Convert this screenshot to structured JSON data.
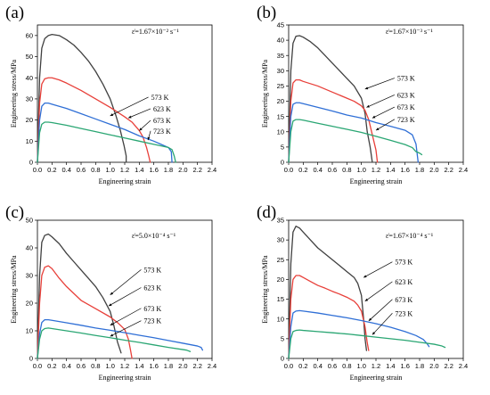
{
  "chart_data": [
    {
      "type": "line",
      "panel_label": "(a)",
      "strain_rate": "ε̇=1.67×10⁻² s⁻¹",
      "xlabel": "Engineering strain",
      "ylabel": "Engineering stress/MPa",
      "xlim": [
        0,
        2.4
      ],
      "ylim": [
        0,
        65
      ],
      "xticks": [
        "0.0",
        "0.2",
        "0.4",
        "0.6",
        "0.8",
        "1.0",
        "1.2",
        "1.4",
        "1.6",
        "1.8",
        "2.0",
        "2.2",
        "2.4"
      ],
      "yticks": [
        "0",
        "10",
        "20",
        "30",
        "40",
        "50",
        "60"
      ],
      "yticks_values": [
        0,
        10,
        20,
        30,
        40,
        50,
        60
      ],
      "series": [
        {
          "name": "573 K",
          "color": "#404040",
          "x": [
            0,
            0.03,
            0.06,
            0.1,
            0.15,
            0.2,
            0.3,
            0.4,
            0.5,
            0.6,
            0.7,
            0.8,
            0.9,
            1.0,
            1.08,
            1.14,
            1.19,
            1.22,
            1.22
          ],
          "y": [
            0,
            40,
            54,
            58.5,
            60,
            60.5,
            60,
            58,
            55.5,
            52,
            48,
            43,
            37,
            30,
            22,
            15,
            8,
            3,
            0
          ]
        },
        {
          "name": "623 K",
          "color": "#e8403a",
          "x": [
            0,
            0.03,
            0.06,
            0.1,
            0.15,
            0.2,
            0.3,
            0.4,
            0.6,
            0.8,
            1.0,
            1.2,
            1.3,
            1.4,
            1.45,
            1.5,
            1.53,
            1.55
          ],
          "y": [
            0,
            28,
            37,
            39.5,
            40,
            40,
            39,
            37.5,
            34,
            30,
            26,
            21.5,
            19,
            15,
            12,
            7,
            3,
            0
          ]
        },
        {
          "name": "673 K",
          "color": "#2f6fd6",
          "x": [
            0,
            0.03,
            0.06,
            0.1,
            0.15,
            0.2,
            0.4,
            0.6,
            0.8,
            1.0,
            1.2,
            1.4,
            1.6,
            1.7,
            1.8,
            1.84,
            1.85
          ],
          "y": [
            0,
            20,
            26.5,
            28,
            28,
            27.5,
            25.5,
            23,
            20.5,
            18,
            15.5,
            12.5,
            10,
            8.5,
            7,
            5,
            0
          ]
        },
        {
          "name": "723 K",
          "color": "#2aa673",
          "x": [
            0,
            0.03,
            0.06,
            0.1,
            0.15,
            0.2,
            0.4,
            0.6,
            0.8,
            1.0,
            1.2,
            1.4,
            1.6,
            1.8,
            1.85,
            1.88,
            1.9
          ],
          "y": [
            0,
            14,
            18,
            19,
            19,
            18.8,
            17.5,
            16,
            14.5,
            13,
            11.5,
            10,
            8.5,
            7,
            6,
            3,
            0
          ]
        }
      ],
      "annotations": [
        {
          "text": "573 K",
          "x": 1.55,
          "y": 30,
          "tx": 1.0,
          "ty": 22
        },
        {
          "text": "623 K",
          "x": 1.58,
          "y": 24.5,
          "tx": 1.25,
          "ty": 21
        },
        {
          "text": "673 K",
          "x": 1.58,
          "y": 19,
          "tx": 1.4,
          "ty": 15
        },
        {
          "text": "723 K",
          "x": 1.58,
          "y": 14,
          "tx": 1.52,
          "ty": 10.5
        }
      ]
    },
    {
      "type": "line",
      "panel_label": "(b)",
      "strain_rate": "ε̇=1.67×10⁻³ s⁻¹",
      "xlabel": "Engineering strain",
      "ylabel": "Engineering stress/MPa",
      "xlim": [
        0,
        2.4
      ],
      "ylim": [
        0,
        45
      ],
      "xticks": [
        "0.0",
        "0.2",
        "0.4",
        "0.6",
        "0.8",
        "1.0",
        "1.2",
        "1.4",
        "1.6",
        "1.8",
        "2.0",
        "2.2",
        "2.4"
      ],
      "yticks": [
        "0",
        "5",
        "10",
        "15",
        "20",
        "25",
        "30",
        "35",
        "40",
        "45"
      ],
      "yticks_values": [
        0,
        5,
        10,
        15,
        20,
        25,
        30,
        35,
        40,
        45
      ],
      "series": [
        {
          "name": "573 K",
          "color": "#404040",
          "x": [
            0,
            0.03,
            0.06,
            0.1,
            0.15,
            0.2,
            0.3,
            0.4,
            0.5,
            0.6,
            0.7,
            0.8,
            0.9,
            1.0,
            1.05,
            1.08,
            1.12,
            1.15
          ],
          "y": [
            0,
            30,
            39,
            41.3,
            41.5,
            41,
            39.5,
            37.5,
            35,
            32.5,
            30,
            27.5,
            25,
            21,
            16,
            10,
            5,
            0
          ]
        },
        {
          "name": "623 K",
          "color": "#e8403a",
          "x": [
            0,
            0.03,
            0.06,
            0.1,
            0.15,
            0.2,
            0.4,
            0.6,
            0.8,
            0.9,
            1.0,
            1.05,
            1.1,
            1.15,
            1.2,
            1.22
          ],
          "y": [
            0,
            20,
            26,
            27,
            27,
            26.5,
            25,
            23,
            21,
            20,
            18.5,
            17,
            14,
            9,
            4,
            0
          ]
        },
        {
          "name": "673 K",
          "color": "#2f6fd6",
          "x": [
            0,
            0.03,
            0.06,
            0.1,
            0.15,
            0.2,
            0.4,
            0.6,
            0.8,
            1.0,
            1.2,
            1.4,
            1.6,
            1.7,
            1.75,
            1.78
          ],
          "y": [
            0,
            15,
            19,
            19.5,
            19.5,
            19.2,
            18,
            16.8,
            15.5,
            14.5,
            13,
            11.8,
            10.5,
            9,
            6,
            0
          ]
        },
        {
          "name": "723 K",
          "color": "#2aa673",
          "x": [
            0,
            0.03,
            0.06,
            0.1,
            0.15,
            0.2,
            0.4,
            0.6,
            0.8,
            1.0,
            1.2,
            1.4,
            1.6,
            1.7,
            1.75,
            1.8,
            1.83
          ],
          "y": [
            0,
            10,
            13.5,
            14,
            14,
            13.8,
            12.8,
            11.8,
            10.8,
            9.8,
            8.5,
            7.2,
            5.8,
            4.8,
            3.5,
            3,
            2.5
          ]
        }
      ],
      "annotations": [
        {
          "text": "573 K",
          "x": 1.48,
          "y": 27,
          "tx": 1.05,
          "ty": 24
        },
        {
          "text": "623 K",
          "x": 1.48,
          "y": 21.5,
          "tx": 1.07,
          "ty": 18
        },
        {
          "text": "673 K",
          "x": 1.48,
          "y": 17.5,
          "tx": 1.15,
          "ty": 14.5
        },
        {
          "text": "723 K",
          "x": 1.48,
          "y": 13.5,
          "tx": 1.2,
          "ty": 10.5
        }
      ]
    },
    {
      "type": "line",
      "panel_label": "(c)",
      "strain_rate": "ε̇=5.0×10⁻⁴ s⁻¹",
      "xlabel": "Engineering strain",
      "ylabel": "Engineering stress/MPa",
      "xlim": [
        0,
        2.4
      ],
      "ylim": [
        0,
        50
      ],
      "xticks": [
        "0.0",
        "0.2",
        "0.4",
        "0.6",
        "0.8",
        "1.0",
        "1.2",
        "1.4",
        "1.6",
        "1.8",
        "2.0",
        "2.2",
        "2.4"
      ],
      "yticks": [
        "0",
        "10",
        "20",
        "30",
        "40",
        "50"
      ],
      "yticks_values": [
        0,
        10,
        20,
        30,
        40,
        50
      ],
      "series": [
        {
          "name": "573 K",
          "color": "#404040",
          "x": [
            0,
            0.03,
            0.06,
            0.1,
            0.15,
            0.2,
            0.3,
            0.4,
            0.5,
            0.6,
            0.7,
            0.8,
            0.9,
            1.0,
            1.05,
            1.1,
            1.15
          ],
          "y": [
            0,
            30,
            42,
            44.5,
            45,
            44,
            41.5,
            38,
            35,
            32,
            29,
            26,
            22,
            17,
            12,
            6,
            2
          ]
        },
        {
          "name": "623 K",
          "color": "#e8403a",
          "x": [
            0,
            0.03,
            0.06,
            0.1,
            0.15,
            0.2,
            0.3,
            0.4,
            0.6,
            0.8,
            1.0,
            1.1,
            1.2,
            1.25,
            1.28,
            1.3
          ],
          "y": [
            0,
            20,
            30,
            33,
            33.5,
            32.5,
            29,
            26,
            21,
            18,
            15,
            13,
            10.5,
            7,
            3,
            0
          ]
        },
        {
          "name": "673 K",
          "color": "#2f6fd6",
          "x": [
            0,
            0.03,
            0.06,
            0.1,
            0.15,
            0.2,
            0.4,
            0.6,
            0.8,
            1.0,
            1.2,
            1.4,
            1.6,
            1.8,
            2.0,
            2.2,
            2.25,
            2.27
          ],
          "y": [
            0,
            9,
            13,
            14,
            14,
            13.8,
            12.9,
            12,
            11,
            10.2,
            9.3,
            8.4,
            7.5,
            6.5,
            5.5,
            4.5,
            4,
            3
          ]
        },
        {
          "name": "723 K",
          "color": "#2aa673",
          "x": [
            0,
            0.03,
            0.06,
            0.1,
            0.15,
            0.2,
            0.4,
            0.6,
            0.8,
            1.0,
            1.2,
            1.4,
            1.6,
            1.8,
            2.0,
            2.05,
            2.1
          ],
          "y": [
            0,
            7,
            10,
            10.8,
            11,
            10.8,
            10,
            9.2,
            8.3,
            7.5,
            6.6,
            5.8,
            4.9,
            4,
            3.2,
            3,
            2.5
          ]
        }
      ],
      "annotations": [
        {
          "text": "573 K",
          "x": 1.45,
          "y": 31.5,
          "tx": 1.0,
          "ty": 23
        },
        {
          "text": "623 K",
          "x": 1.45,
          "y": 25,
          "tx": 0.98,
          "ty": 19
        },
        {
          "text": "673 K",
          "x": 1.45,
          "y": 17.5,
          "tx": 1.0,
          "ty": 12
        },
        {
          "text": "723 K",
          "x": 1.45,
          "y": 13,
          "tx": 1.0,
          "ty": 8
        }
      ]
    },
    {
      "type": "line",
      "panel_label": "(d)",
      "strain_rate": "ε̇=1.67×10⁻⁴ s⁻¹",
      "xlabel": "Engineering strain",
      "ylabel": "Engineering stress/MPa",
      "xlim": [
        0,
        2.4
      ],
      "ylim": [
        0,
        35
      ],
      "xticks": [
        "0.0",
        "0.2",
        "0.4",
        "0.6",
        "0.8",
        "1.0",
        "1.2",
        "1.4",
        "1.6",
        "1.8",
        "2.0",
        "2.2",
        "2.4"
      ],
      "yticks": [
        "0",
        "5",
        "10",
        "15",
        "20",
        "25",
        "30",
        "35"
      ],
      "yticks_values": [
        0,
        5,
        10,
        15,
        20,
        25,
        30,
        35
      ],
      "series": [
        {
          "name": "573 K",
          "color": "#404040",
          "x": [
            0,
            0.03,
            0.06,
            0.1,
            0.15,
            0.2,
            0.3,
            0.4,
            0.5,
            0.6,
            0.7,
            0.8,
            0.9,
            0.95,
            1.0,
            1.03,
            1.05,
            1.07
          ],
          "y": [
            0,
            24,
            32,
            33.5,
            33,
            32,
            30,
            28,
            26.5,
            25,
            23.5,
            22,
            20.5,
            19,
            16,
            10,
            5,
            2
          ]
        },
        {
          "name": "623 K",
          "color": "#e8403a",
          "x": [
            0,
            0.03,
            0.06,
            0.1,
            0.15,
            0.2,
            0.3,
            0.4,
            0.5,
            0.6,
            0.7,
            0.8,
            0.9,
            0.95,
            1.0,
            1.05,
            1.08,
            1.1
          ],
          "y": [
            0,
            15,
            20,
            21,
            21,
            20.5,
            19.5,
            18.5,
            17.8,
            17,
            16.3,
            15.5,
            14.5,
            13.5,
            12,
            8,
            4,
            2
          ]
        },
        {
          "name": "673 K",
          "color": "#2f6fd6",
          "x": [
            0,
            0.03,
            0.06,
            0.1,
            0.15,
            0.2,
            0.4,
            0.6,
            0.8,
            1.0,
            1.2,
            1.4,
            1.6,
            1.75,
            1.85,
            1.9,
            1.93
          ],
          "y": [
            0,
            8,
            11.5,
            12,
            12.1,
            12,
            11.5,
            10.9,
            10.3,
            9.6,
            8.8,
            7.9,
            6.8,
            5.8,
            4.8,
            3.8,
            3
          ]
        },
        {
          "name": "723 K",
          "color": "#2aa673",
          "x": [
            0,
            0.03,
            0.06,
            0.1,
            0.15,
            0.2,
            0.4,
            0.6,
            0.8,
            1.0,
            1.2,
            1.4,
            1.6,
            1.8,
            2.0,
            2.1,
            2.15
          ],
          "y": [
            0,
            5,
            6.8,
            7.1,
            7.2,
            7.1,
            6.8,
            6.5,
            6.2,
            5.8,
            5.4,
            5,
            4.6,
            4.1,
            3.6,
            3.2,
            2.8
          ]
        }
      ],
      "annotations": [
        {
          "text": "573 K",
          "x": 1.45,
          "y": 24,
          "tx": 1.03,
          "ty": 20.5
        },
        {
          "text": "623 K",
          "x": 1.45,
          "y": 19,
          "tx": 1.05,
          "ty": 14.5
        },
        {
          "text": "673 K",
          "x": 1.45,
          "y": 14.5,
          "tx": 1.1,
          "ty": 9.5
        },
        {
          "text": "723 K",
          "x": 1.45,
          "y": 11,
          "tx": 1.15,
          "ty": 6
        }
      ]
    }
  ]
}
